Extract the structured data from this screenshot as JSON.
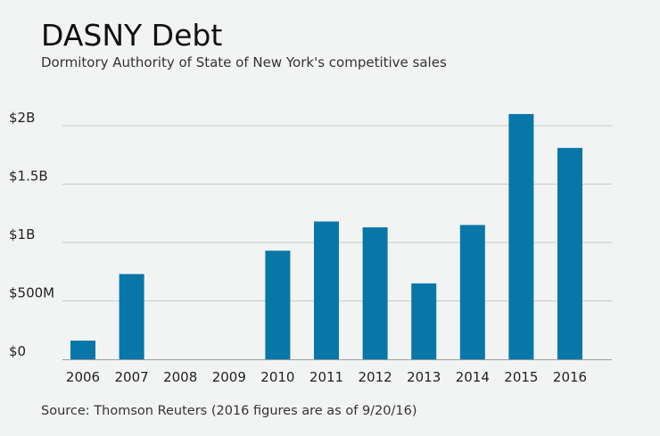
{
  "header": {
    "title": "DASNY Debt",
    "subtitle": "Dormitory Authority of State of New York's competitive sales"
  },
  "footer": {
    "source": "Source: Thomson Reuters (2016 figures are as of 9/20/16)"
  },
  "colors": {
    "bar": "#0777a8",
    "grid": "#c9cccd",
    "background": "#f2f3f3"
  },
  "chart_data": {
    "type": "bar",
    "title": "DASNY Debt",
    "subtitle": "Dormitory Authority of State of New York's competitive sales",
    "xlabel": "",
    "ylabel": "",
    "categories": [
      "2006",
      "2007",
      "2008",
      "2009",
      "2010",
      "2011",
      "2012",
      "2013",
      "2014",
      "2015",
      "2016"
    ],
    "values": [
      160,
      730,
      0,
      0,
      930,
      1180,
      1130,
      650,
      1150,
      2100,
      1810
    ],
    "value_unit": "$M",
    "ylim": [
      0,
      2000
    ],
    "yticks": [
      0,
      500,
      1000,
      1500,
      2000
    ],
    "ytick_labels": [
      "$0",
      "$500M",
      "$1B",
      "$1.5B",
      "$2B"
    ],
    "grid": true,
    "legend": "none"
  }
}
